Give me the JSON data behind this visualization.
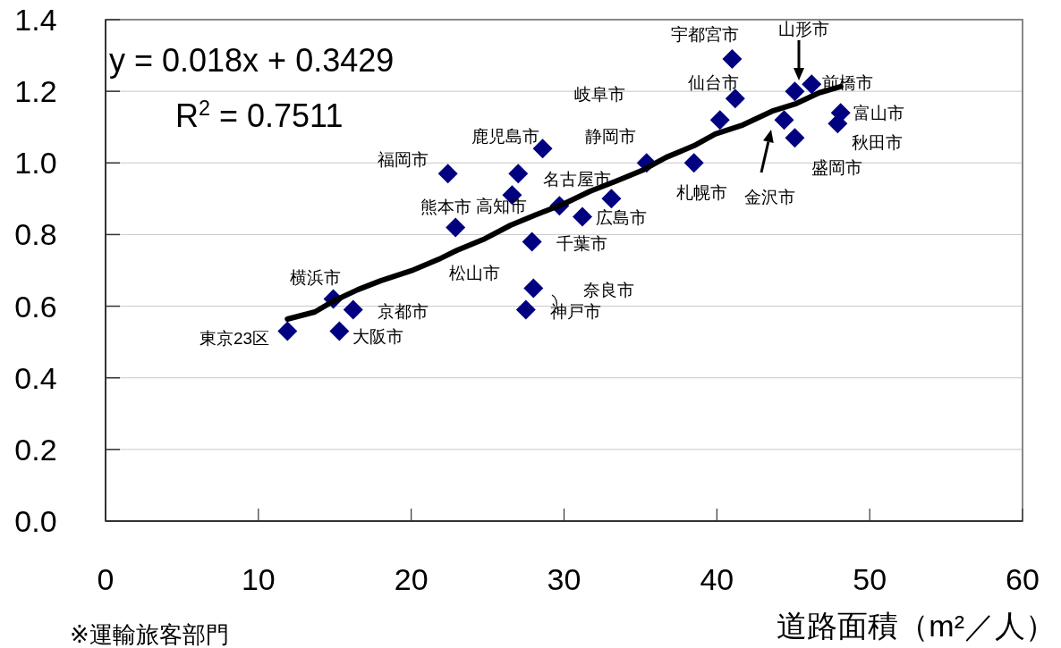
{
  "chart_data": {
    "type": "scatter",
    "xlabel": "道路面積（m²／人）",
    "xlim": [
      0,
      60
    ],
    "xticks": [
      0,
      10,
      20,
      30,
      40,
      50,
      60
    ],
    "ylim": [
      0,
      1.4
    ],
    "yticks": [
      {
        "value": 0,
        "label": "0.0"
      },
      {
        "value": 0.2,
        "label": "0.2"
      },
      {
        "value": 0.4,
        "label": "0.4"
      },
      {
        "value": 0.6,
        "label": "0.6"
      },
      {
        "value": 0.8,
        "label": "0.8"
      },
      {
        "value": 1.0,
        "label": "1.0"
      },
      {
        "value": 1.2,
        "label": "1.2"
      },
      {
        "value": 1.4,
        "label": "1.4"
      }
    ],
    "grid": "y",
    "series": [
      {
        "type": "scatter",
        "color": "#000080",
        "marker": "diamond",
        "x": [
          11.9,
          14.9,
          16.2,
          15.3,
          22.4,
          22.9,
          28.6,
          27.0,
          26.6,
          29.7,
          27.9,
          31.2,
          33.1,
          28.0,
          27.5,
          35.4,
          38.5,
          40.2,
          41.0,
          41.2,
          45.1,
          46.2,
          44.4,
          45.1,
          48.1,
          47.9
        ],
        "values": [
          0.53,
          0.62,
          0.59,
          0.53,
          0.97,
          0.82,
          1.04,
          0.97,
          0.91,
          0.88,
          0.78,
          0.85,
          0.9,
          0.65,
          0.59,
          1.0,
          1.0,
          1.12,
          1.29,
          1.18,
          1.2,
          1.22,
          1.12,
          1.07,
          1.14,
          1.11
        ]
      },
      {
        "type": "line",
        "color": "#000000",
        "marker": "none",
        "x": [
          11.9,
          13.7,
          14.9,
          16.5,
          18.0,
          20.0,
          21.8,
          23.0,
          24.7,
          26.5,
          28.2,
          30.0,
          31.7,
          33.5,
          35.2,
          36.7,
          38.5,
          39.9,
          41.7,
          43.7,
          45.2,
          46.7,
          48.1
        ],
        "values": [
          0.564,
          0.584,
          0.614,
          0.646,
          0.671,
          0.699,
          0.731,
          0.756,
          0.786,
          0.826,
          0.856,
          0.886,
          0.921,
          0.951,
          0.981,
          1.016,
          1.048,
          1.081,
          1.106,
          1.146,
          1.166,
          1.196,
          1.213
        ]
      }
    ],
    "annotations": [
      "y = 0.018x + 0.3429",
      "R$^{2}$ = 0.7511",
      "※運輸旅客部門",
      "東京23区",
      "横浜市",
      "京都市",
      "大阪市",
      "福岡市",
      "熊本市",
      "鹿児島市",
      "名古屋市",
      "高知市",
      "松山市",
      "千葉市",
      "広島市",
      "奈良市",
      "神戸市",
      "岐阜市",
      "静岡市",
      "札幌市",
      "宇都宮市",
      "仙台市",
      "山形市",
      "前橋市",
      "金沢市",
      "富山市",
      "秋田市",
      "盛岡市"
    ]
  }
}
